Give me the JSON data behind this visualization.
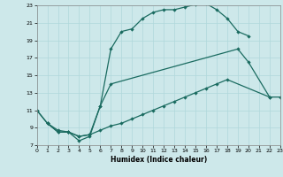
{
  "xlabel": "Humidex (Indice chaleur)",
  "xlim": [
    0,
    23
  ],
  "ylim": [
    7,
    23
  ],
  "yticks": [
    7,
    9,
    11,
    13,
    15,
    17,
    19,
    21,
    23
  ],
  "xticks": [
    0,
    1,
    2,
    3,
    4,
    5,
    6,
    7,
    8,
    9,
    10,
    11,
    12,
    13,
    14,
    15,
    16,
    17,
    18,
    19,
    20,
    21,
    22,
    23
  ],
  "bg_color": "#cde8ea",
  "grid_color": "#b0d8db",
  "line_color": "#1a6b60",
  "curve1_x": [
    0,
    1,
    2,
    3,
    4,
    5,
    6,
    7,
    8,
    9,
    10,
    11,
    12,
    13,
    14,
    15,
    16,
    17,
    18,
    19,
    20
  ],
  "curve1_y": [
    11,
    9.5,
    8.5,
    8.5,
    7.5,
    8.0,
    11.5,
    18.0,
    20.0,
    20.3,
    21.5,
    22.2,
    22.5,
    22.5,
    22.8,
    23.1,
    23.2,
    22.5,
    21.5,
    20.0,
    19.5
  ],
  "curve2_x": [
    0,
    1,
    2,
    3,
    4,
    5,
    6,
    7,
    19,
    20,
    22
  ],
  "curve2_y": [
    11,
    9.5,
    8.5,
    8.5,
    8.0,
    8.2,
    11.5,
    14.0,
    18.0,
    16.5,
    12.5
  ],
  "curve3_x": [
    1,
    2,
    3,
    4,
    5,
    6,
    7,
    8,
    9,
    10,
    11,
    12,
    13,
    14,
    15,
    16,
    17,
    18,
    22,
    23
  ],
  "curve3_y": [
    9.5,
    8.7,
    8.5,
    8.0,
    8.2,
    8.7,
    9.2,
    9.5,
    10.0,
    10.5,
    11.0,
    11.5,
    12.0,
    12.5,
    13.0,
    13.5,
    14.0,
    14.5,
    12.5,
    12.5
  ]
}
